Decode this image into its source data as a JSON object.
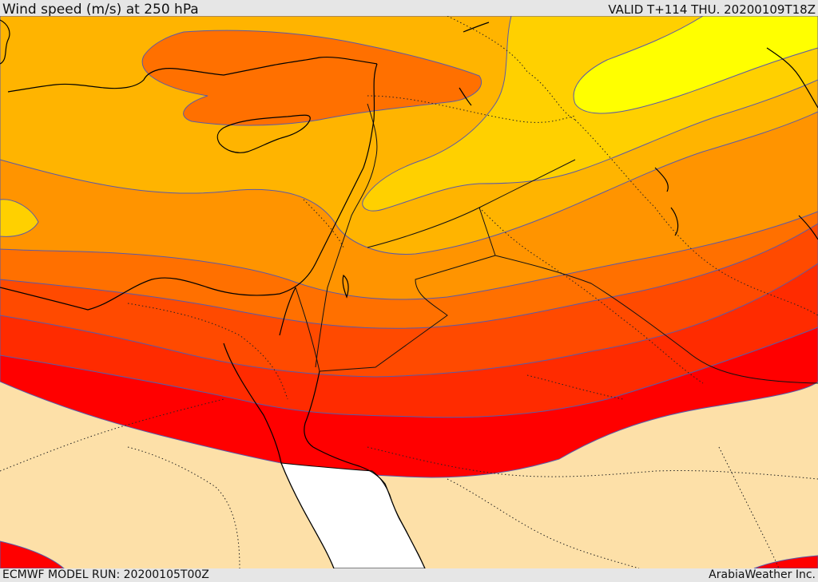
{
  "header": {
    "title": "Wind speed (m/s) at 250 hPa",
    "valid": "VALID T+114 THU. 20200109T18Z"
  },
  "footer": {
    "model_run": "ECMWF MODEL RUN: 20200105T00Z",
    "credit": "ArabiaWeather Inc."
  },
  "map": {
    "variable": "wind-speed",
    "level": "250 hPa",
    "units": "m/s",
    "fill_colors": {
      "lowest": "#fde0a8",
      "band_1": "#ff0000",
      "band_2": "#ff2b00",
      "band_3": "#ff4a00",
      "band_4": "#ff7000",
      "band_5": "#ff9400",
      "band_6": "#ffb400",
      "band_7": "#ffd000",
      "band_8": "#ffff00",
      "water_no_data": "#ffffff",
      "contour": "#5a5aa8",
      "coastline": "#000000"
    }
  }
}
